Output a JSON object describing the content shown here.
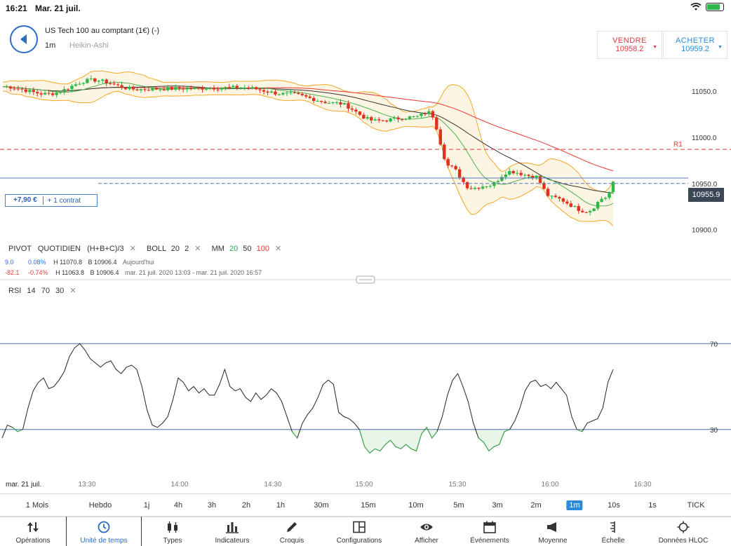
{
  "status_bar": {
    "time": "16:21",
    "date": "Mar. 21 juil."
  },
  "instrument": {
    "name": "US Tech 100 au comptant (1€) (-)",
    "timeframe": "1m",
    "chart_type": "Heikin-Ashi"
  },
  "trade": {
    "sell": {
      "label": "VENDRE",
      "price": "10958.2"
    },
    "buy": {
      "label": "ACHETER",
      "price": "10959.2"
    }
  },
  "main_chart": {
    "price_axis": [
      "11050.0",
      "11000.0",
      "10950.0",
      "10900.0"
    ],
    "price_range": [
      10880,
      11085
    ],
    "pivot_label": "R1",
    "pivot_value": 10987,
    "position_price": 10950,
    "current_price": "10955.9",
    "current_price_value": 10955.9,
    "position": {
      "pnl": "+7,90 €",
      "contracts": "+ 1 contrat"
    },
    "colors": {
      "up": "#2fb84a",
      "down": "#e0301e",
      "bollinger": "#f5a623",
      "ma20": "#4caf50",
      "ma50": "#333333",
      "ma100": "#e53935",
      "pivot": "#e53935",
      "position": "#4a7cc5"
    }
  },
  "legend": {
    "pivot": "PIVOT",
    "pivot_type": "QUOTIDIEN",
    "pivot_formula": "(H+B+C)/3",
    "boll": "BOLL",
    "boll_period": "20",
    "boll_dev": "2",
    "mm": "MM",
    "mm20": "20",
    "mm50": "50",
    "mm100": "100",
    "row1": {
      "change": "9.0",
      "pct": "0.08%",
      "high": "H 11070.8",
      "low": "B 10906.4",
      "period": "Aujourd'hui"
    },
    "row2": {
      "change": "-82.1",
      "pct": "-0.74%",
      "high": "H 11063.8",
      "low": "B 10906.4",
      "period": "mar. 21 juil. 2020 13:03 - mar. 21 juil. 2020 16:57"
    }
  },
  "rsi": {
    "label": "RSI",
    "period": "14",
    "upper": "70",
    "lower": "30",
    "axis_labels": [
      "70",
      "30"
    ],
    "upper_value": 70,
    "lower_value": 30,
    "values": [
      26,
      32,
      31,
      29,
      30,
      40,
      48,
      52,
      54,
      49,
      50,
      53,
      57,
      64,
      68,
      70,
      67,
      63,
      61,
      59,
      61,
      62,
      58,
      56,
      59,
      60,
      58,
      50,
      39,
      32,
      31,
      33,
      36,
      44,
      54,
      52,
      48,
      50,
      47,
      49,
      46,
      46,
      51,
      58,
      50,
      48,
      49,
      45,
      43,
      47,
      44,
      46,
      49,
      47,
      43,
      36,
      29,
      26,
      33,
      37,
      40,
      45,
      51,
      53,
      51,
      38,
      36,
      35,
      33,
      30,
      22,
      19,
      21,
      20,
      23,
      25,
      22,
      21,
      23,
      21,
      20,
      28,
      31,
      26,
      29,
      36,
      46,
      53,
      56,
      50,
      43,
      33,
      26,
      24,
      20,
      22,
      23,
      29,
      30,
      34,
      40,
      48,
      52,
      53,
      50,
      51,
      49,
      52,
      49,
      46,
      36,
      30,
      29,
      33,
      34,
      35,
      40,
      52,
      58
    ]
  },
  "time_axis": [
    "mar. 21 juil.",
    "13:30",
    "14:00",
    "14:30",
    "15:00",
    "15:30",
    "16:00",
    "16:30"
  ],
  "periods": [
    {
      "label": "1 Mois"
    },
    {
      "label": "Hebdo"
    },
    {
      "label": "1j"
    },
    {
      "label": "4h"
    },
    {
      "label": "3h"
    },
    {
      "label": "2h"
    },
    {
      "label": "1h"
    },
    {
      "label": "30m"
    },
    {
      "label": "15m"
    },
    {
      "label": "10m"
    },
    {
      "label": "5m"
    },
    {
      "label": "3m"
    },
    {
      "label": "2m"
    },
    {
      "label": "1m",
      "active": true
    },
    {
      "label": "10s"
    },
    {
      "label": "1s"
    },
    {
      "label": "TICK"
    }
  ],
  "tabs": [
    {
      "label": "Opérations",
      "icon": "arrows-updown-icon"
    },
    {
      "label": "Unité de temps",
      "icon": "clock-icon",
      "active": true
    },
    {
      "label": "Types",
      "icon": "candles-icon"
    },
    {
      "label": "Indicateurs",
      "icon": "bar-chart-icon"
    },
    {
      "label": "Croquis",
      "icon": "pencil-icon"
    },
    {
      "label": "Configurations",
      "icon": "layout-icon"
    },
    {
      "label": "Afficher",
      "icon": "eye-icon"
    },
    {
      "label": "Événements",
      "icon": "calendar-icon"
    },
    {
      "label": "Moyenne",
      "icon": "megaphone-icon"
    },
    {
      "label": "Échelle",
      "icon": "scale-icon"
    },
    {
      "label": "Données HLOC",
      "icon": "crosshair-icon"
    }
  ]
}
